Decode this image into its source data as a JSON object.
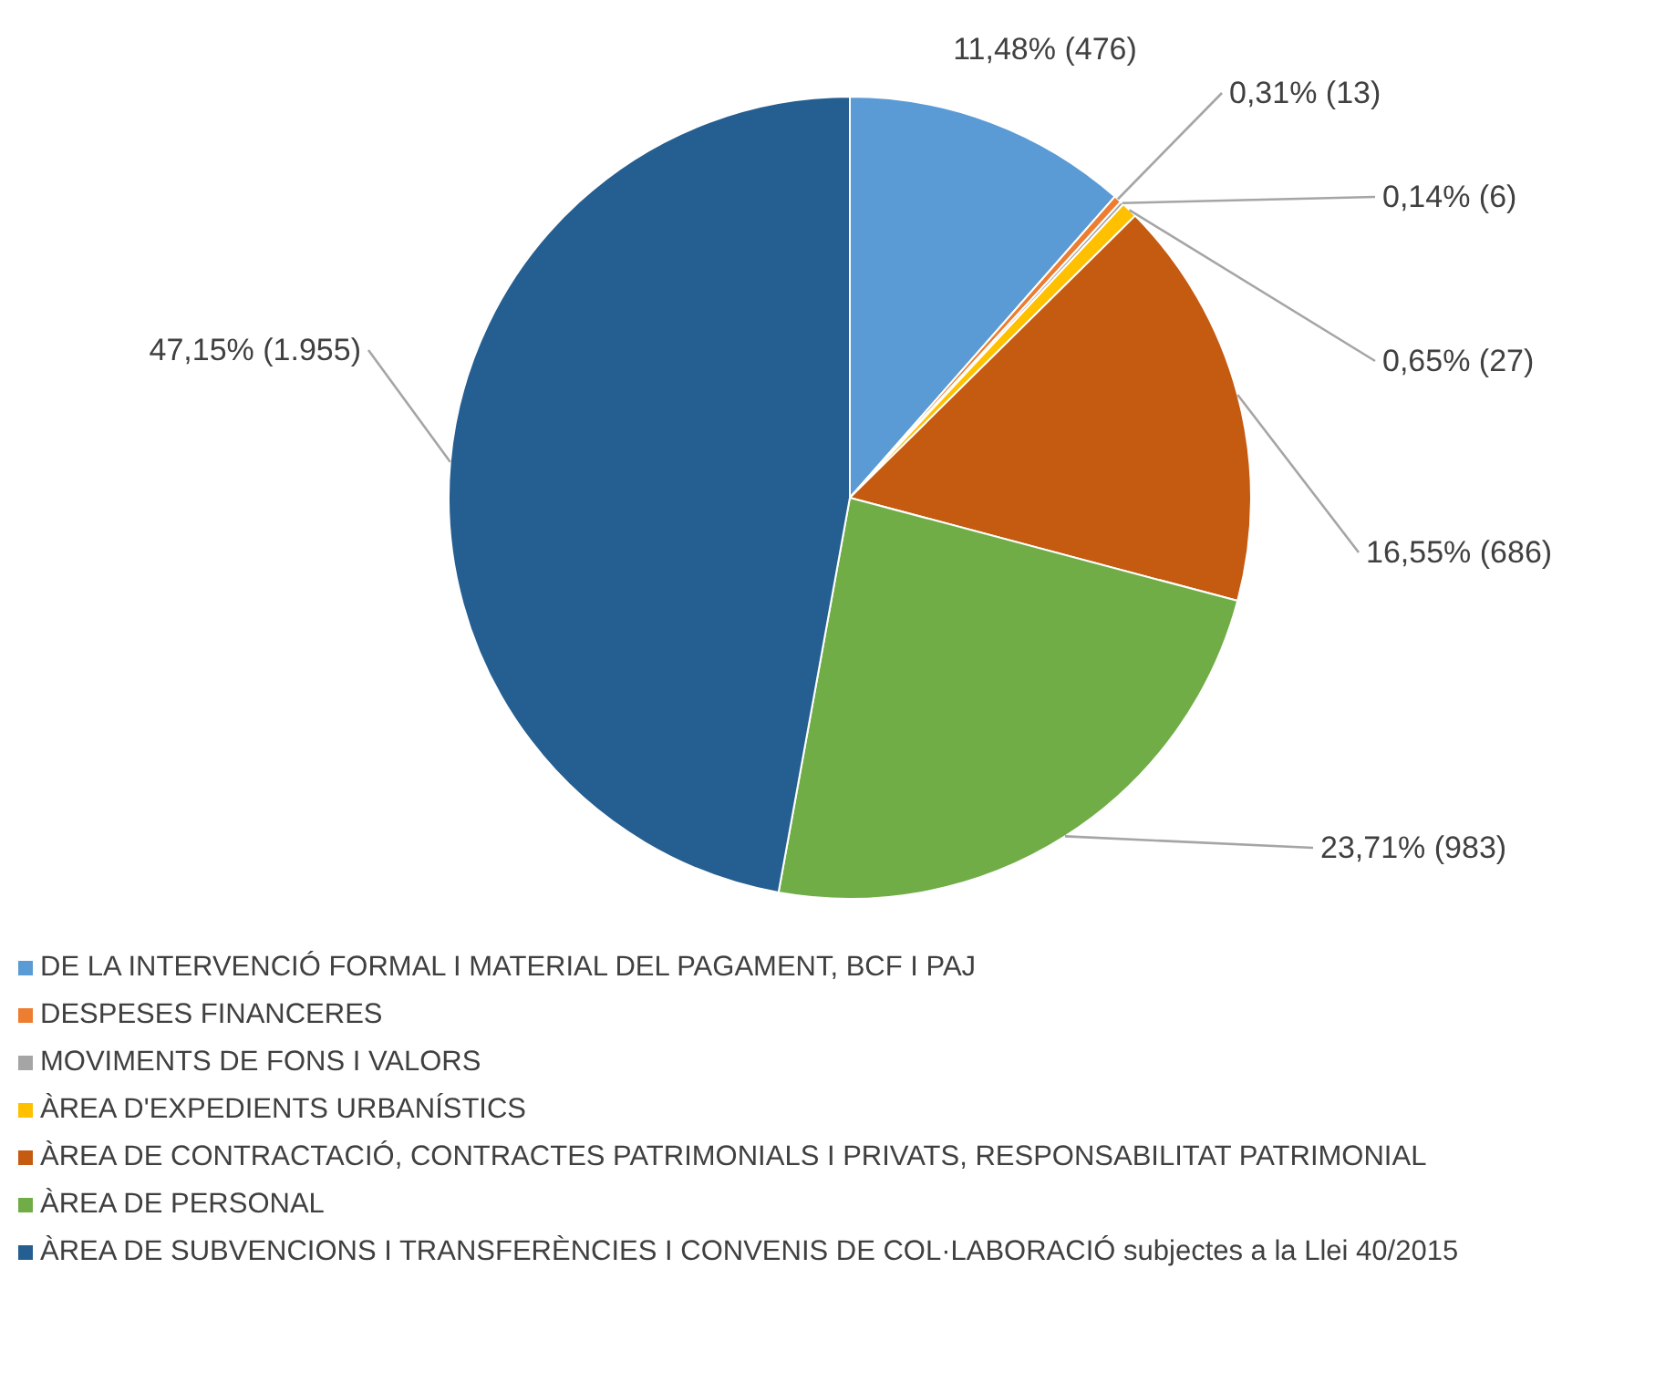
{
  "chart_data": {
    "type": "pie",
    "categories": [
      "DE LA INTERVENCIÓ FORMAL I MATERIAL DEL PAGAMENT, BCF I PAJ",
      "DESPESES FINANCERES",
      "MOVIMENTS DE FONS I VALORS",
      "ÀREA D'EXPEDIENTS URBANÍSTICS",
      "ÀREA DE CONTRACTACIÓ, CONTRACTES PATRIMONIALS I PRIVATS, RESPONSABILITAT PATRIMONIAL",
      "ÀREA DE PERSONAL",
      "ÀREA DE SUBVENCIONS I TRANSFERÈNCIES I CONVENIS DE COL·LABORACIÓ subjectes a la Llei 40/2015"
    ],
    "values": [
      476,
      13,
      6,
      27,
      686,
      983,
      1955
    ],
    "value_labels": [
      "11,48% (476)",
      "0,31% (13)",
      "0,14% (6)",
      "0,65% (27)",
      "16,55% (686)",
      "23,71% (983)",
      "47,15% (1.955)"
    ],
    "colors": [
      "#5b9bd5",
      "#ed7d31",
      "#a5a5a5",
      "#ffc000",
      "#c55a11",
      "#70ad47",
      "#255e91"
    ],
    "legend": "bottom"
  }
}
